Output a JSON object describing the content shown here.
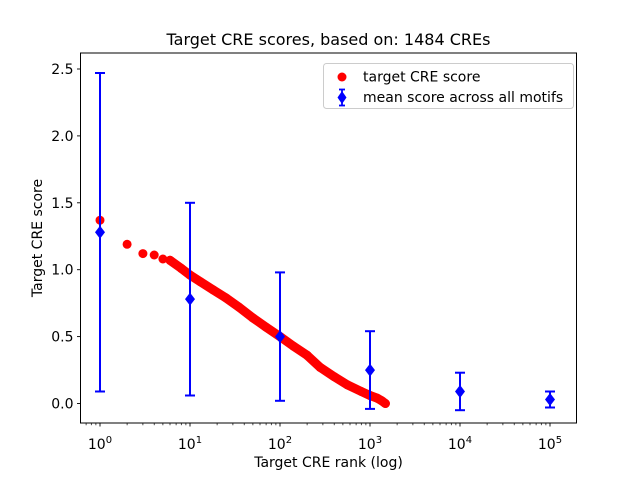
{
  "figure": {
    "background": "#ffffff"
  },
  "chart_data": {
    "type": "scatter",
    "title": "Target CRE scores, based on: 1484 CREs",
    "xlabel": "Target CRE rank (log)",
    "ylabel": "Target CRE score",
    "x_scale": "log",
    "xlim": [
      0.6,
      180000
    ],
    "ylim": [
      -0.15,
      2.62
    ],
    "grid": false,
    "n_cres": 1484,
    "x_ticks": {
      "major_exponents": [
        0,
        1,
        2,
        3,
        4,
        5
      ],
      "minor_mantissas": [
        2,
        3,
        4,
        5,
        6,
        7,
        8,
        9
      ]
    },
    "y_ticks": [
      0.0,
      0.5,
      1.0,
      1.5,
      2.0,
      2.5
    ],
    "y_tick_labels": [
      "0.0",
      "0.5",
      "1.0",
      "1.5",
      "2.0",
      "2.5"
    ],
    "legend": {
      "position": "upper right",
      "entries": [
        "target CRE score",
        "mean score across all motifs"
      ]
    },
    "series": [
      {
        "name": "target CRE score",
        "marker": "circle",
        "color": "#ff0000",
        "points": [
          [
            1,
            1.37
          ],
          [
            2,
            1.19
          ],
          [
            3,
            1.12
          ],
          [
            4,
            1.11
          ],
          [
            5,
            1.08
          ],
          [
            6,
            1.07
          ],
          [
            8,
            1.01
          ],
          [
            10,
            0.96
          ],
          [
            13,
            0.91
          ],
          [
            18,
            0.85
          ],
          [
            25,
            0.79
          ],
          [
            35,
            0.72
          ],
          [
            50,
            0.64
          ],
          [
            70,
            0.57
          ],
          [
            100,
            0.5
          ],
          [
            140,
            0.43
          ],
          [
            200,
            0.36
          ],
          [
            280,
            0.27
          ],
          [
            400,
            0.2
          ],
          [
            560,
            0.14
          ],
          [
            800,
            0.09
          ],
          [
            1000,
            0.06
          ],
          [
            1200,
            0.04
          ],
          [
            1350,
            0.02
          ],
          [
            1484,
            0.0
          ]
        ]
      },
      {
        "name": "mean score across all motifs",
        "marker": "diamond",
        "color": "#0000ff",
        "error_bars": true,
        "x": [
          1,
          10,
          100,
          1000,
          10000,
          100000
        ],
        "mean": [
          1.28,
          0.78,
          0.5,
          0.25,
          0.09,
          0.03
        ],
        "std": [
          1.19,
          0.72,
          0.48,
          0.29,
          0.14,
          0.06
        ]
      }
    ],
    "colors": {
      "target": "#ff0000",
      "mean": "#0000ff",
      "axis": "#000000",
      "legend_border": "#cccccc",
      "background": "#ffffff"
    }
  }
}
